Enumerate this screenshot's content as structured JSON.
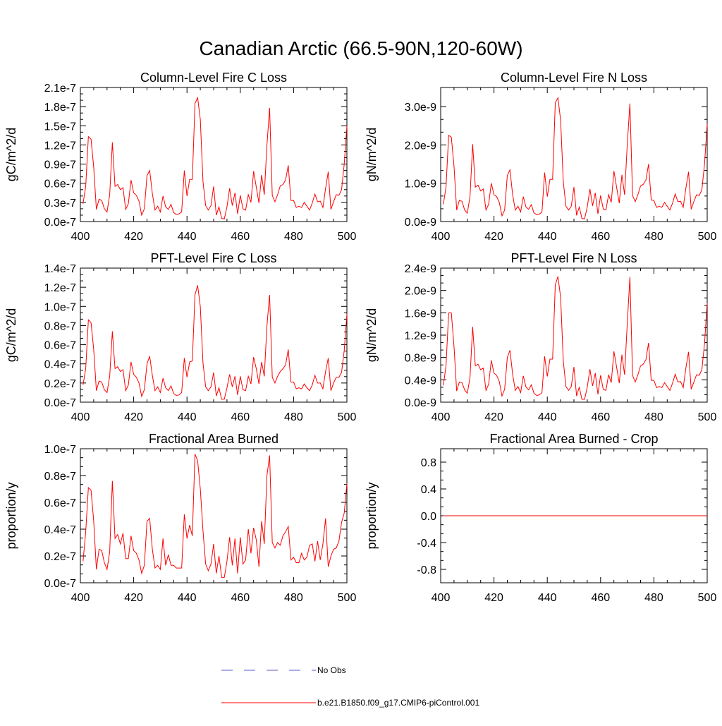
{
  "title": "Canadian Arctic (66.5-90N,120-60W)",
  "colors": {
    "model": "#ff0000",
    "obs": "#5a5ad6",
    "axis": "#000000"
  },
  "legend": {
    "obs_label": "No Obs",
    "model_label": "b.e21.B1850.f09_g17.CMIP6-piControl.001"
  },
  "chart_data": [
    {
      "type": "line",
      "title": "Column-Level Fire C Loss",
      "ylabel": "gC/m^2/d",
      "xlim": [
        400,
        500
      ],
      "ylim": [
        0.0,
        2.1e-07
      ],
      "xticks": [
        400,
        420,
        440,
        460,
        480,
        500
      ],
      "yticks": [
        0.0,
        3e-08,
        6e-08,
        9e-08,
        1.2e-07,
        1.5e-07,
        1.8e-07,
        2.1e-07
      ],
      "ytick_labels": [
        "0.0e-7",
        "0.3e-7",
        "0.6e-7",
        "0.9e-7",
        "1.2e-7",
        "1.5e-7",
        "1.8e-7",
        "2.1e-7"
      ],
      "series": [
        {
          "name": "b.e21.B1850.f09_g17.CMIP6-piControl.001",
          "x_start": 401,
          "values": [
            2.8e-08,
            5.5e-08,
            1.33e-07,
            1.29e-07,
            8.5e-08,
            1.9e-08,
            3.5e-08,
            3.3e-08,
            2e-08,
            1.5e-08,
            4.2e-08,
            1.24e-07,
            5.5e-08,
            5.8e-08,
            5e-08,
            5.3e-08,
            1.9e-08,
            2.8e-08,
            6.5e-08,
            4.5e-08,
            4.1e-08,
            3.2e-08,
            1e-08,
            2e-08,
            7.2e-08,
            8e-08,
            4.4e-08,
            1.8e-08,
            2.4e-08,
            1.5e-08,
            4e-08,
            2.3e-08,
            1.9e-08,
            2.7e-08,
            1.4e-08,
            1.1e-08,
            1.2e-08,
            1.5e-08,
            8e-08,
            4e-08,
            6.6e-08,
            6.6e-08,
            1.85e-07,
            1.94e-07,
            1.6e-07,
            6.3e-08,
            2.5e-08,
            1.8e-08,
            2.5e-08,
            5.5e-08,
            1e-08,
            2.3e-08,
            5e-09,
            4e-09,
            2.3e-08,
            5.2e-08,
            2.5e-08,
            4.5e-08,
            1.2e-08,
            4.1e-08,
            2e-08,
            1.8e-08,
            4.2e-08,
            3e-08,
            7.9e-08,
            5.4e-08,
            2.9e-08,
            7.3e-08,
            4.2e-08,
            1.2e-07,
            1.78e-07,
            4.1e-08,
            3.1e-08,
            4.2e-08,
            5.6e-08,
            5.8e-08,
            6.5e-08,
            8.8e-08,
            3.3e-08,
            3.3e-08,
            2.2e-08,
            2.4e-08,
            2.2e-08,
            3e-08,
            2.4e-08,
            1.8e-08,
            2.9e-08,
            4.3e-08,
            3.1e-08,
            3.2e-08,
            2.2e-08,
            5.2e-08,
            7.8e-08,
            1.9e-08,
            3.1e-08,
            4.2e-08,
            4.1e-08,
            5e-08,
            9e-08,
            1.5e-07
          ]
        }
      ]
    },
    {
      "type": "line",
      "title": "Column-Level Fire N Loss",
      "ylabel": "gN/m^2/d",
      "xlim": [
        400,
        500
      ],
      "ylim": [
        0.0,
        3.5e-09
      ],
      "xticks": [
        400,
        420,
        440,
        460,
        480,
        500
      ],
      "yticks": [
        0.0,
        1e-09,
        2e-09,
        3e-09
      ],
      "ytick_labels": [
        "0.0e-9",
        "1.0e-9",
        "2.0e-9",
        "3.0e-9"
      ],
      "series": [
        {
          "name": "b.e21.B1850.f09_g17.CMIP6-piControl.001",
          "x_start": 401,
          "values": [
            4.5e-10,
            9e-10,
            2.25e-09,
            2.2e-09,
            1.45e-09,
            3e-10,
            5.5e-10,
            5.3e-10,
            3e-10,
            2.2e-10,
            6.5e-10,
            2.02e-09,
            9e-10,
            9.5e-10,
            8e-10,
            8.5e-10,
            3e-10,
            4.5e-10,
            1e-09,
            7e-10,
            6.5e-10,
            5e-10,
            1.5e-10,
            3e-10,
            1.2e-09,
            1.35e-09,
            7e-10,
            3e-10,
            4e-10,
            2.5e-10,
            6.5e-10,
            3.8e-10,
            3.2e-10,
            4.4e-10,
            2.3e-10,
            1.8e-10,
            1.9e-10,
            2.5e-10,
            1.28e-09,
            6.5e-10,
            1.1e-09,
            1.1e-09,
            3.1e-09,
            3.23e-09,
            2.65e-09,
            1.05e-09,
            4e-10,
            3e-10,
            4e-10,
            9e-10,
            1.6e-10,
            3.8e-10,
            8e-11,
            7e-11,
            3.8e-10,
            8.5e-10,
            4.1e-10,
            7.5e-10,
            2e-10,
            6.8e-10,
            3.3e-10,
            3e-10,
            7e-10,
            5e-10,
            1.32e-09,
            9e-10,
            4.8e-10,
            1.22e-09,
            7e-10,
            2e-09,
            3.08e-09,
            6.8e-10,
            5.2e-10,
            7e-10,
            9.3e-10,
            9.7e-10,
            1.08e-09,
            1.5e-09,
            5.6e-10,
            5.5e-10,
            3.7e-10,
            4e-10,
            3.7e-10,
            5e-10,
            4e-10,
            3e-10,
            4.8e-10,
            7.2e-10,
            5.2e-10,
            5.3e-10,
            3.7e-10,
            8.7e-10,
            1.3e-09,
            3.2e-10,
            5.2e-10,
            7e-10,
            6.8e-10,
            8.3e-10,
            1.5e-09,
            2.55e-09
          ]
        }
      ]
    },
    {
      "type": "line",
      "title": "PFT-Level Fire C Loss",
      "ylabel": "gC/m^2/d",
      "xlim": [
        400,
        500
      ],
      "ylim": [
        0.0,
        1.4e-07
      ],
      "xticks": [
        400,
        420,
        440,
        460,
        480,
        500
      ],
      "yticks": [
        0.0,
        2e-08,
        4e-08,
        6e-08,
        8e-08,
        1e-07,
        1.2e-07,
        1.4e-07
      ],
      "ytick_labels": [
        "0.0e-7",
        "0.2e-7",
        "0.4e-7",
        "0.6e-7",
        "0.8e-7",
        "1.0e-7",
        "1.2e-7",
        "1.4e-7"
      ],
      "series": [
        {
          "name": "b.e21.B1850.f09_g17.CMIP6-piControl.001",
          "x_start": 401,
          "values": [
            1.8e-08,
            3.5e-08,
            8.6e-08,
            8.3e-08,
            5.5e-08,
            1.2e-08,
            2.2e-08,
            2.1e-08,
            1.3e-08,
            1e-08,
            2.7e-08,
            7.4e-08,
            3.5e-08,
            3.7e-08,
            3.2e-08,
            3.4e-08,
            1.2e-08,
            1.8e-08,
            4.2e-08,
            2.9e-08,
            2.6e-08,
            2e-08,
            6e-09,
            1.3e-08,
            4e-08,
            4.8e-08,
            2.8e-08,
            1.2e-08,
            1.6e-08,
            1e-08,
            2.5e-08,
            1.5e-08,
            1.2e-08,
            1.7e-08,
            9e-09,
            7e-09,
            7.5e-09,
            1e-08,
            4.6e-08,
            2.6e-08,
            4.2e-08,
            4.3e-08,
            1.12e-07,
            1.22e-07,
            1e-07,
            4.1e-08,
            1.6e-08,
            1.2e-08,
            1.6e-08,
            3.1e-08,
            6.5e-09,
            1.5e-08,
            3e-09,
            3e-09,
            1.5e-08,
            2.9e-08,
            1.6e-08,
            2.7e-08,
            7.5e-09,
            2.7e-08,
            1.3e-08,
            1.2e-08,
            2.7e-08,
            1.9e-08,
            4.7e-08,
            3.5e-08,
            1.9e-08,
            4.2e-08,
            2.7e-08,
            8e-08,
            1.12e-07,
            2.6e-08,
            2e-08,
            2.7e-08,
            3.2e-08,
            3.5e-08,
            3.9e-08,
            5.5e-08,
            2.1e-08,
            2.1e-08,
            1.4e-08,
            1.5e-08,
            1.4e-08,
            1.9e-08,
            1.5e-08,
            1.2e-08,
            1.8e-08,
            2.8e-08,
            2e-08,
            2e-08,
            1.4e-08,
            3.2e-08,
            4.6e-08,
            1.2e-08,
            2e-08,
            2.6e-08,
            2.6e-08,
            3.1e-08,
            5.4e-08,
            9.2e-08
          ]
        }
      ]
    },
    {
      "type": "line",
      "title": "PFT-Level Fire N Loss",
      "ylabel": "gN/m^2/d",
      "xlim": [
        400,
        500
      ],
      "ylim": [
        0.0,
        2.4e-09
      ],
      "xticks": [
        400,
        420,
        440,
        460,
        480,
        500
      ],
      "yticks": [
        0.0,
        4e-10,
        8e-10,
        1.2e-09,
        1.6e-09,
        2e-09,
        2.4e-09
      ],
      "ytick_labels": [
        "0.0e-9",
        "0.4e-9",
        "0.8e-9",
        "1.2e-9",
        "1.6e-9",
        "2.0e-9",
        "2.4e-9"
      ],
      "series": [
        {
          "name": "b.e21.B1850.f09_g17.CMIP6-piControl.001",
          "x_start": 401,
          "values": [
            3e-10,
            6.5e-10,
            1.6e-09,
            1.6e-09,
            1e-09,
            2e-10,
            3.6e-10,
            3.5e-10,
            2.2e-10,
            1.6e-10,
            4.4e-10,
            1.35e-09,
            6.5e-10,
            6.8e-10,
            5.8e-10,
            6.1e-10,
            2.1e-10,
            3.2e-10,
            7.5e-10,
            5.2e-10,
            4.8e-10,
            3.7e-10,
            1.1e-10,
            2.3e-10,
            8e-10,
            9.3e-10,
            5e-10,
            2.1e-10,
            2.8e-10,
            1.7e-10,
            4.7e-10,
            2.7e-10,
            2.2e-10,
            3.1e-10,
            1.6e-10,
            1.2e-10,
            1.3e-10,
            1.7e-10,
            8.2e-10,
            4.6e-10,
            7.7e-10,
            7.7e-10,
            2.1e-09,
            2.25e-09,
            1.88e-09,
            7.4e-10,
            2.8e-10,
            2.1e-10,
            2.8e-10,
            6.3e-10,
            1.1e-10,
            2.7e-10,
            5e-11,
            5e-11,
            2.7e-10,
            5.9e-10,
            2.9e-10,
            5.2e-10,
            1.4e-10,
            4.8e-10,
            2.3e-10,
            2.1e-10,
            4.9e-10,
            3.5e-10,
            9.1e-10,
            6.3e-10,
            3.4e-10,
            8.5e-10,
            4.9e-10,
            1.4e-09,
            2.24e-09,
            4.8e-10,
            3.6e-10,
            4.9e-10,
            6.5e-10,
            6.8e-10,
            7.6e-10,
            1.06e-09,
            3.9e-10,
            3.9e-10,
            2.6e-10,
            2.8e-10,
            2.6e-10,
            3.5e-10,
            2.8e-10,
            2.1e-10,
            3.4e-10,
            5e-10,
            3.6e-10,
            3.7e-10,
            2.6e-10,
            6.1e-10,
            9e-10,
            2.3e-10,
            3.6e-10,
            4.9e-10,
            4.8e-10,
            5.8e-10,
            1.05e-09,
            1.78e-09
          ]
        }
      ]
    },
    {
      "type": "line",
      "title": "Fractional Area Burned",
      "ylabel": "proportion/y",
      "xlim": [
        400,
        500
      ],
      "ylim": [
        0.0,
        1e-07
      ],
      "xticks": [
        400,
        420,
        440,
        460,
        480,
        500
      ],
      "yticks": [
        0.0,
        2e-08,
        4e-08,
        6e-08,
        8e-08,
        1e-07
      ],
      "ytick_labels": [
        "0.0e-7",
        "0.2e-7",
        "0.4e-7",
        "0.6e-7",
        "0.8e-7",
        "1.0e-7"
      ],
      "series": [
        {
          "name": "b.e21.B1850.f09_g17.CMIP6-piControl.001",
          "x_start": 401,
          "values": [
            1.6e-08,
            3.8e-08,
            7.1e-08,
            6.9e-08,
            4.6e-08,
            1e-08,
            2.5e-08,
            2.4e-08,
            1.5e-08,
            1e-08,
            2.3e-08,
            7.6e-08,
            3.3e-08,
            3.6e-08,
            2.9e-08,
            3.7e-08,
            1.8e-08,
            1.8e-08,
            3.5e-08,
            2.4e-08,
            2.2e-08,
            1.7e-08,
            7e-09,
            1.3e-08,
            4.6e-08,
            4.8e-08,
            2.5e-08,
            1.1e-08,
            1.3e-08,
            1e-08,
            3.3e-08,
            1.3e-08,
            2.1e-08,
            1.3e-08,
            1.3e-08,
            1.1e-08,
            1.1e-08,
            1.1e-08,
            5.1e-08,
            3.3e-08,
            4.3e-08,
            3.5e-08,
            9.6e-08,
            9.1e-08,
            7e-08,
            3.9e-08,
            1.4e-08,
            9e-09,
            1.4e-08,
            2.9e-08,
            7e-09,
            2e-08,
            4e-09,
            4e-09,
            1.6e-08,
            3.4e-08,
            1.3e-08,
            3.3e-08,
            7e-09,
            3.4e-08,
            1.4e-08,
            1.7e-08,
            4e-08,
            2.2e-08,
            4.1e-08,
            3.2e-08,
            1.2e-08,
            4.6e-08,
            2.9e-08,
            8e-08,
            9.5e-08,
            3e-08,
            2.6e-08,
            3e-08,
            2.8e-08,
            3.5e-08,
            3.8e-08,
            4.2e-08,
            1.7e-08,
            1.9e-08,
            1.5e-08,
            1.5e-08,
            2.2e-08,
            1.7e-08,
            1.9e-08,
            2.8e-08,
            2.9e-08,
            1.6e-08,
            3.1e-08,
            1.7e-08,
            2.9e-08,
            4.8e-08,
            1.2e-08,
            2e-08,
            2.5e-08,
            2.6e-08,
            3.1e-08,
            4.5e-08,
            5.2e-08,
            7.4e-08
          ]
        }
      ]
    },
    {
      "type": "line",
      "title": "Fractional Area Burned - Crop",
      "ylabel": "proportion/y",
      "xlim": [
        400,
        500
      ],
      "ylim": [
        -1.0,
        1.0
      ],
      "xticks": [
        400,
        420,
        440,
        460,
        480,
        500
      ],
      "yticks": [
        -0.8,
        -0.4,
        0.0,
        0.4,
        0.8
      ],
      "ytick_labels": [
        "-0.8",
        "-0.4",
        "0.0",
        "0.4",
        "0.8"
      ],
      "series": [
        {
          "name": "b.e21.B1850.f09_g17.CMIP6-piControl.001",
          "x_start": 401,
          "constant": 0.0,
          "count": 100
        }
      ]
    }
  ]
}
